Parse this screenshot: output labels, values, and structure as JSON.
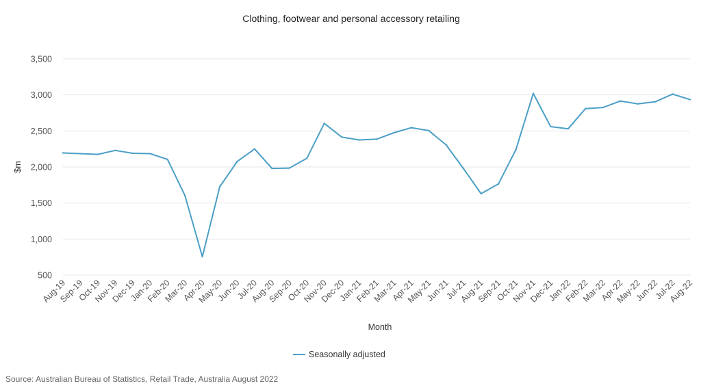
{
  "chart_data": {
    "type": "line",
    "title": "Clothing, footwear and personal accessory retailing",
    "xlabel": "Month",
    "ylabel": "$m",
    "ylim": [
      500,
      3500
    ],
    "yticks": [
      "500",
      "1,000",
      "1,500",
      "2,000",
      "2,500",
      "3,000",
      "3,500"
    ],
    "ytick_values": [
      500,
      1000,
      1500,
      2000,
      2500,
      3000,
      3500
    ],
    "grid": true,
    "legend_position": "bottom",
    "categories": [
      "Aug-19",
      "Sep-19",
      "Oct-19",
      "Nov-19",
      "Dec-19",
      "Jan-20",
      "Feb-20",
      "Mar-20",
      "Apr-20",
      "May-20",
      "Jun-20",
      "Jul-20",
      "Aug-20",
      "Sep-20",
      "Oct-20",
      "Nov-20",
      "Dec-20",
      "Jan-21",
      "Feb-21",
      "Mar-21",
      "Apr-21",
      "May-21",
      "Jun-21",
      "Jul-21",
      "Aug-21",
      "Sep-21",
      "Oct-21",
      "Nov-21",
      "Dec-21",
      "Jan-22",
      "Feb-22",
      "Mar-22",
      "Apr-22",
      "May-22",
      "Jun-22",
      "Jul-22",
      "Aug-22"
    ],
    "series": [
      {
        "name": "Seasonally adjusted",
        "color": "#4a9fc6",
        "values": [
          2195,
          2185,
          2175,
          2230,
          2190,
          2185,
          2105,
          1605,
          755,
          1725,
          2075,
          2250,
          1980,
          1985,
          2120,
          2605,
          2415,
          2375,
          2385,
          2475,
          2545,
          2505,
          2305,
          1975,
          1630,
          1765,
          2240,
          3020,
          2560,
          2530,
          2810,
          2825,
          2915,
          2875,
          2905,
          3010,
          2935
        ]
      }
    ],
    "source": "Source: Australian Bureau of Statistics, Retail Trade, Australia August 2022"
  }
}
